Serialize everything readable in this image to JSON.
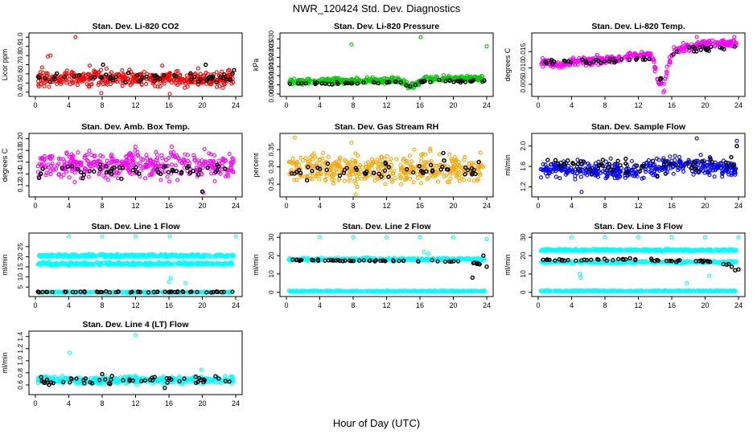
{
  "figure": {
    "title": "NWR_120424  Std. Dev. Diagnostics",
    "xlabel": "Hour of Day (UTC)"
  },
  "chart_data": [
    {
      "type": "scatter",
      "title": "Stan. Dev. Li-820 CO2",
      "ylabel": "Licor ppm",
      "xlim": [
        0,
        24
      ],
      "ylim": [
        0.38,
        1.02
      ],
      "xticks": [
        0,
        4,
        8,
        12,
        16,
        20,
        24
      ],
      "yticks": [
        0.4,
        0.5,
        0.6,
        0.7,
        0.8,
        0.9,
        1.0
      ],
      "ytick_labels": [
        "0.4",
        "0.5",
        "0.6",
        "0.7",
        "0.8",
        "0.9",
        "1.0"
      ],
      "series": [
        {
          "color": "#ff0000",
          "band": [
            [
              0,
              0.55
            ],
            [
              24,
              0.55
            ]
          ],
          "spread": 0.08,
          "outliers": [
            [
              1.5,
              0.79
            ],
            [
              1.8,
              0.8
            ],
            [
              4.8,
              1.0
            ],
            [
              0.8,
              0.67
            ],
            [
              7.9,
              0.39
            ],
            [
              16.1,
              0.38
            ],
            [
              6.5,
              0.69
            ],
            [
              15.2,
              0.69
            ],
            [
              19.5,
              0.66
            ]
          ]
        },
        {
          "color": "#000000",
          "band": [
            [
              0,
              0.55
            ],
            [
              24,
              0.56
            ]
          ],
          "spread": 0.05,
          "outliers": [
            [
              8.1,
              0.7
            ],
            [
              20.4,
              0.7
            ],
            [
              23.8,
              0.64
            ]
          ]
        }
      ]
    },
    {
      "type": "scatter",
      "title": "Stan. Dev. Li-820 Pressure",
      "ylabel": "kPa",
      "xlim": [
        0,
        24
      ],
      "ylim": [
        0,
        0.032
      ],
      "xticks": [
        0,
        4,
        8,
        12,
        16,
        20,
        24
      ],
      "yticks": [
        0,
        0.005,
        0.01,
        0.015,
        0.02,
        0.025,
        0.03
      ],
      "ytick_labels": [
        "0.000",
        "0.005",
        "0.010",
        "0.015",
        "0.020",
        "0.025",
        "0.030"
      ],
      "series": [
        {
          "color": "#00cc00",
          "band": [
            [
              0,
              0.0065
            ],
            [
              13.5,
              0.0075
            ],
            [
              14.8,
              0.004
            ],
            [
              15.5,
              0.005
            ],
            [
              16.5,
              0.0085
            ],
            [
              24,
              0.0085
            ]
          ],
          "spread": 0.0015,
          "outliers": [
            [
              7.8,
              0.027
            ],
            [
              16.1,
              0.031
            ],
            [
              24.0,
              0.026
            ]
          ]
        },
        {
          "color": "#000000",
          "band": [
            [
              0,
              0.0055
            ],
            [
              13.5,
              0.0065
            ],
            [
              14.8,
              0.004
            ],
            [
              16.5,
              0.007
            ],
            [
              24,
              0.007
            ]
          ],
          "spread": 0.0008,
          "outliers": []
        }
      ]
    },
    {
      "type": "scatter",
      "title": "Stan. Dev. Li-820 Temp.",
      "ylabel": "degrees C",
      "xlim": [
        0,
        24
      ],
      "ylim": [
        0.002,
        0.02
      ],
      "xticks": [
        0,
        4,
        8,
        12,
        16,
        20,
        24
      ],
      "yticks": [
        0.005,
        0.01,
        0.015
      ],
      "ytick_labels": [
        "0.005",
        "0.010",
        "0.015"
      ],
      "series": [
        {
          "color": "#ff00ff",
          "band": [
            [
              0,
              0.012
            ],
            [
              2,
              0.011
            ],
            [
              5,
              0.012
            ],
            [
              8,
              0.0125
            ],
            [
              11,
              0.0135
            ],
            [
              13.2,
              0.0145
            ],
            [
              13.8,
              0.0125
            ],
            [
              14.3,
              0.006
            ],
            [
              15,
              0.0045
            ],
            [
              15.6,
              0.011
            ],
            [
              16.2,
              0.0155
            ],
            [
              20,
              0.0175
            ],
            [
              24,
              0.0175
            ]
          ],
          "spread": 0.0011,
          "outliers": [
            [
              15.0,
              0.0025
            ],
            [
              15.1,
              0.003
            ],
            [
              19.0,
              0.0195
            ],
            [
              23.5,
              0.0195
            ]
          ]
        },
        {
          "color": "#000000",
          "band": [
            [
              0,
              0.0115
            ],
            [
              8,
              0.012
            ],
            [
              13,
              0.0135
            ],
            [
              14,
              0.01
            ],
            [
              14.6,
              0.006
            ],
            [
              15.5,
              0.013
            ],
            [
              16.5,
              0.0155
            ],
            [
              24,
              0.0165
            ]
          ],
          "spread": 0.0009,
          "outliers": []
        }
      ]
    },
    {
      "type": "scatter",
      "title": "Stan. Dev. Amb. Box Temp.",
      "ylabel": "degrees C",
      "xlim": [
        0,
        24
      ],
      "ylim": [
        0.105,
        0.205
      ],
      "xticks": [
        0,
        4,
        8,
        12,
        16,
        20,
        24
      ],
      "yticks": [
        0.12,
        0.14,
        0.16,
        0.18,
        0.2
      ],
      "ytick_labels": [
        "0.12",
        "0.14",
        "0.16",
        "0.18",
        "0.20"
      ],
      "series": [
        {
          "color": "#ff00ff",
          "band": [
            [
              0,
              0.155
            ],
            [
              24,
              0.155
            ]
          ],
          "spread": 0.022,
          "outliers": [
            [
              20.1,
              0.108
            ]
          ]
        },
        {
          "color": "#000000",
          "band": [
            [
              0,
              0.145
            ],
            [
              24,
              0.145
            ]
          ],
          "spread": 0.012,
          "outliers": [
            [
              20.0,
              0.11
            ]
          ]
        }
      ]
    },
    {
      "type": "scatter",
      "title": "Stan. Dev. Gas Stream RH",
      "ylabel": "percent",
      "xlim": [
        0,
        24
      ],
      "ylim": [
        0.22,
        0.39
      ],
      "xticks": [
        0,
        4,
        8,
        12,
        16,
        20,
        24
      ],
      "yticks": [
        0.25,
        0.3,
        0.35
      ],
      "ytick_labels": [
        "0.25",
        "0.30",
        "0.35"
      ],
      "series": [
        {
          "color": "#ffa500",
          "band": [
            [
              0,
              0.295
            ],
            [
              24,
              0.295
            ]
          ],
          "spread": 0.04,
          "outliers": [
            [
              1.0,
              0.385
            ],
            [
              7.8,
              0.37
            ],
            [
              8.3,
              0.22
            ]
          ]
        },
        {
          "color": "#000000",
          "band": [
            [
              0,
              0.29
            ],
            [
              24,
              0.29
            ]
          ],
          "spread": 0.025,
          "outliers": [
            [
              18.8,
              0.34
            ]
          ]
        }
      ]
    },
    {
      "type": "scatter",
      "title": "Stan. Dev. Sample Flow",
      "ylabel": "ml/min",
      "xlim": [
        0,
        24
      ],
      "ylim": [
        1.05,
        2.2
      ],
      "xticks": [
        0,
        4,
        8,
        12,
        16,
        20,
        24
      ],
      "yticks": [
        1.2,
        1.6,
        2.0
      ],
      "ytick_labels": [
        "1.2",
        "1.6",
        "2.0"
      ],
      "series": [
        {
          "color": "#0000ff",
          "band": [
            [
              0,
              1.55
            ],
            [
              12,
              1.5
            ],
            [
              16,
              1.65
            ],
            [
              24,
              1.55
            ]
          ],
          "spread": 0.16,
          "outliers": [
            [
              19.0,
              2.15
            ],
            [
              23.8,
              2.1
            ],
            [
              5.2,
              1.1
            ]
          ]
        },
        {
          "color": "#000000",
          "band": [
            [
              0,
              1.6
            ],
            [
              24,
              1.65
            ]
          ],
          "spread": 0.17,
          "outliers": [
            [
              23.8,
              2.0
            ]
          ]
        }
      ]
    },
    {
      "type": "scatter",
      "title": "Stan. Dev. Line 1 Flow",
      "ylabel": "ml/min",
      "xlim": [
        0,
        24
      ],
      "ylim": [
        1.5,
        30.5
      ],
      "xticks": [
        0,
        4,
        8,
        12,
        16,
        20,
        24
      ],
      "yticks": [
        5,
        10,
        15,
        20,
        25
      ],
      "ytick_labels": [
        "5",
        "10",
        "15",
        "20",
        "25"
      ],
      "series": [
        {
          "color": "#00ffff",
          "band": [
            [
              0,
              20.5
            ],
            [
              24,
              20.5
            ]
          ],
          "spread": 0.7,
          "outliers": [
            [
              4.0,
              30
            ],
            [
              8.0,
              30
            ],
            [
              12.0,
              30
            ],
            [
              16.1,
              30
            ],
            [
              24.0,
              30
            ]
          ]
        },
        {
          "color": "#00ffff",
          "band": [
            [
              0,
              16.5
            ],
            [
              24,
              16.5
            ]
          ],
          "spread": 0.7,
          "outliers": [
            [
              16.2,
              9.5
            ],
            [
              16.0,
              7.5
            ],
            [
              18.0,
              7.0
            ]
          ]
        },
        {
          "color": "#00ffff",
          "band": [
            [
              0,
              2.4
            ],
            [
              24,
              2.4
            ]
          ],
          "spread": 0.35,
          "outliers": []
        },
        {
          "color": "#000000",
          "band": [
            [
              0,
              2.6
            ],
            [
              24,
              2.6
            ]
          ],
          "spread": 0.25,
          "outliers": []
        }
      ]
    },
    {
      "type": "scatter",
      "title": "Stan. Dev. Line 2 Flow",
      "ylabel": "ml/min",
      "xlim": [
        0,
        24
      ],
      "ylim": [
        -1,
        31
      ],
      "xticks": [
        0,
        4,
        8,
        12,
        16,
        20,
        24
      ],
      "yticks": [
        0,
        10,
        20,
        30
      ],
      "ytick_labels": [
        "0",
        "10",
        "20",
        "30"
      ],
      "series": [
        {
          "color": "#00ffff",
          "band": [
            [
              0,
              18
            ],
            [
              24,
              18
            ]
          ],
          "spread": 0.7,
          "outliers": [
            [
              4.0,
              30
            ],
            [
              8.0,
              30
            ],
            [
              12.0,
              30
            ],
            [
              16.0,
              30
            ],
            [
              20.0,
              30
            ],
            [
              24.0,
              29
            ],
            [
              16.5,
              22
            ],
            [
              17.0,
              21
            ]
          ]
        },
        {
          "color": "#00ffff",
          "band": [
            [
              0,
              0.6
            ],
            [
              24,
              0.6
            ]
          ],
          "spread": 0.3,
          "outliers": []
        },
        {
          "color": "#000000",
          "band": [
            [
              0,
              17.5
            ],
            [
              20,
              17
            ],
            [
              22.5,
              16
            ],
            [
              24,
              15
            ]
          ],
          "spread": 0.4,
          "outliers": [
            [
              22.3,
              8
            ],
            [
              23.6,
              20
            ],
            [
              24.0,
              14
            ]
          ]
        }
      ]
    },
    {
      "type": "scatter",
      "title": "Stan. Dev. Line 3 Flow",
      "ylabel": "ml/min",
      "xlim": [
        0,
        24
      ],
      "ylim": [
        -1,
        31
      ],
      "xticks": [
        0,
        4,
        8,
        12,
        16,
        20,
        24
      ],
      "yticks": [
        0,
        10,
        20,
        30
      ],
      "ytick_labels": [
        "0",
        "10",
        "20",
        "30"
      ],
      "series": [
        {
          "color": "#00ffff",
          "band": [
            [
              0,
              23
            ],
            [
              24,
              23
            ]
          ],
          "spread": 0.6,
          "outliers": [
            [
              4.0,
              30
            ],
            [
              8.0,
              30
            ],
            [
              12.0,
              30
            ],
            [
              16.0,
              30
            ],
            [
              20.0,
              30
            ],
            [
              24.0,
              30
            ],
            [
              5.0,
              10
            ],
            [
              5.1,
              8
            ],
            [
              17.8,
              5
            ],
            [
              20.5,
              9
            ]
          ]
        },
        {
          "color": "#00ffff",
          "band": [
            [
              0,
              16.5
            ],
            [
              24,
              16.5
            ]
          ],
          "spread": 0.6,
          "outliers": []
        },
        {
          "color": "#00ffff",
          "band": [
            [
              0,
              0.7
            ],
            [
              24,
              0.7
            ]
          ],
          "spread": 0.3,
          "outliers": []
        },
        {
          "color": "#000000",
          "band": [
            [
              0,
              17.5
            ],
            [
              12,
              18
            ],
            [
              16,
              17
            ],
            [
              20,
              17
            ],
            [
              24,
              14
            ]
          ],
          "spread": 0.6,
          "outliers": [
            [
              23.6,
              12
            ],
            [
              24.0,
              12.5
            ]
          ]
        }
      ]
    },
    {
      "type": "scatter",
      "title": "Stan. Dev. Line 4 (LT) Flow",
      "ylabel": "ml/min",
      "xlim": [
        0,
        24
      ],
      "ylim": [
        0.48,
        1.45
      ],
      "xticks": [
        0,
        4,
        8,
        12,
        16,
        20,
        24
      ],
      "yticks": [
        0.6,
        0.8,
        1.0,
        1.2,
        1.4
      ],
      "ytick_labels": [
        "0.6",
        "0.8",
        "1.0",
        "1.2",
        "1.4"
      ],
      "series": [
        {
          "color": "#00ffff",
          "band": [
            [
              0,
              0.68
            ],
            [
              24,
              0.68
            ]
          ],
          "spread": 0.06,
          "outliers": [
            [
              4.1,
              1.13
            ],
            [
              12.0,
              1.42
            ],
            [
              19.9,
              0.85
            ]
          ]
        },
        {
          "color": "#000000",
          "band": [
            [
              0,
              0.67
            ],
            [
              24,
              0.67
            ]
          ],
          "spread": 0.07,
          "outliers": [
            [
              8.0,
              0.78
            ],
            [
              15.5,
              0.55
            ]
          ]
        }
      ]
    }
  ]
}
